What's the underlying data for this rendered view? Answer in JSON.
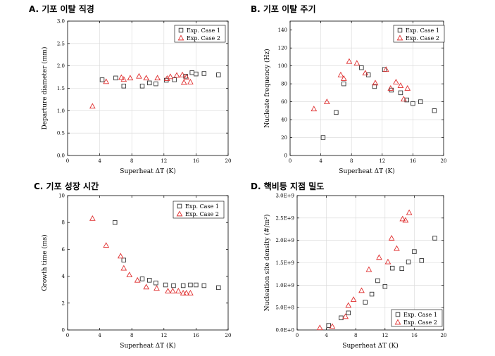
{
  "chart_data": [
    {
      "id": "A",
      "type": "scatter",
      "title": "A. 기포 이탈 직경",
      "xlabel": "Superheat ΔT (K)",
      "ylabel": "Departure diameter (mm)",
      "xlim": [
        0,
        20
      ],
      "ylim": [
        0,
        3.0
      ],
      "xticks": [
        "0",
        "4",
        "8",
        "12",
        "16",
        "20"
      ],
      "xtick_values": [
        0,
        4,
        8,
        12,
        16,
        20
      ],
      "yticks": [
        "0.0",
        "0.5",
        "1.0",
        "1.5",
        "2.0",
        "2.5",
        "3.0"
      ],
      "ytick_values": [
        0,
        0.5,
        1.0,
        1.5,
        2.0,
        2.5,
        3.0
      ],
      "grid": true,
      "legend": "top-right",
      "series": [
        {
          "name": "Exp. Case 1",
          "marker": "square",
          "color": "#333333",
          "x": [
            4.3,
            6.0,
            7.0,
            9.3,
            10.2,
            11.0,
            12.3,
            13.3,
            14.7,
            15.5,
            16.0,
            17.0,
            18.8
          ],
          "y": [
            1.69,
            1.73,
            1.55,
            1.55,
            1.62,
            1.6,
            1.68,
            1.69,
            1.77,
            1.85,
            1.82,
            1.83,
            1.8
          ]
        },
        {
          "name": "Exp. Case 2",
          "marker": "triangle",
          "color": "#e03030",
          "x": [
            3.1,
            4.8,
            6.7,
            7.0,
            7.8,
            8.9,
            9.8,
            11.2,
            12.4,
            12.8,
            13.6,
            14.3,
            14.5,
            14.8,
            15.3
          ],
          "y": [
            1.1,
            1.65,
            1.74,
            1.7,
            1.73,
            1.77,
            1.73,
            1.73,
            1.72,
            1.76,
            1.79,
            1.8,
            1.63,
            1.75,
            1.64
          ]
        }
      ]
    },
    {
      "id": "B",
      "type": "scatter",
      "title": "B. 기포 이탈 주기",
      "xlabel": "Superheat ΔT (K)",
      "ylabel": "Nucleate frequency (Hz)",
      "xlim": [
        0,
        20
      ],
      "ylim": [
        0,
        150
      ],
      "xticks": [
        "0",
        "4",
        "8",
        "12",
        "16",
        "20"
      ],
      "xtick_values": [
        0,
        4,
        8,
        12,
        16,
        20
      ],
      "yticks": [
        "0",
        "20",
        "40",
        "60",
        "80",
        "100",
        "120",
        "140"
      ],
      "ytick_values": [
        0,
        20,
        40,
        60,
        80,
        100,
        120,
        140
      ],
      "grid": true,
      "legend": "top-right",
      "series": [
        {
          "name": "Exp. Case 1",
          "marker": "square",
          "color": "#333333",
          "x": [
            4.3,
            6.0,
            7.0,
            9.3,
            10.2,
            11.0,
            12.3,
            13.2,
            14.4,
            15.2,
            16.0,
            17.0,
            18.8
          ],
          "y": [
            20,
            48,
            80,
            98,
            90,
            77,
            96,
            73,
            70,
            62,
            58,
            60,
            50
          ]
        },
        {
          "name": "Exp. Case 2",
          "marker": "triangle",
          "color": "#e03030",
          "x": [
            3.1,
            4.8,
            6.6,
            7.0,
            7.7,
            8.7,
            9.8,
            11.1,
            12.5,
            13.1,
            13.8,
            14.4,
            14.8,
            15.3
          ],
          "y": [
            52,
            60,
            90,
            86,
            105,
            103,
            92,
            81,
            96,
            75,
            82,
            78,
            63,
            75
          ]
        }
      ]
    },
    {
      "id": "C",
      "type": "scatter",
      "title": "C. 기포 성장 시간",
      "xlabel": "Superheat ΔT (K)",
      "ylabel": "Growth time (ms)",
      "xlim": [
        0,
        20
      ],
      "ylim": [
        0,
        10
      ],
      "xticks": [
        "0",
        "4",
        "8",
        "12",
        "16",
        "20"
      ],
      "xtick_values": [
        0,
        4,
        8,
        12,
        16,
        20
      ],
      "yticks": [
        "0",
        "2",
        "4",
        "6",
        "8",
        "10"
      ],
      "ytick_values": [
        0,
        2,
        4,
        6,
        8,
        10
      ],
      "grid": false,
      "legend": "top-right",
      "series": [
        {
          "name": "Exp. Case 1",
          "marker": "square",
          "color": "#333333",
          "x": [
            5.9,
            7.0,
            9.3,
            10.2,
            11.0,
            12.2,
            13.2,
            14.4,
            15.3,
            16.0,
            17.0,
            18.8
          ],
          "y": [
            8.0,
            5.2,
            3.8,
            3.7,
            3.5,
            3.35,
            3.3,
            3.3,
            3.35,
            3.35,
            3.3,
            3.15
          ]
        },
        {
          "name": "Exp. Case 2",
          "marker": "triangle",
          "color": "#e03030",
          "x": [
            3.1,
            4.8,
            6.6,
            7.0,
            7.7,
            8.7,
            9.8,
            11.1,
            12.5,
            13.1,
            13.8,
            14.4,
            14.8,
            15.3
          ],
          "y": [
            8.3,
            6.3,
            5.5,
            4.6,
            4.1,
            3.7,
            3.2,
            3.1,
            2.9,
            2.9,
            2.9,
            2.75,
            2.75,
            2.75
          ]
        }
      ]
    },
    {
      "id": "D",
      "type": "scatter",
      "title": "D. 핵비등 지점 밀도",
      "xlabel": "Superheat ΔT (K)",
      "ylabel": "Nucleation site density (#/m²)",
      "xlim": [
        0,
        20
      ],
      "ylim": [
        0,
        3000000000.0
      ],
      "xticks": [
        "0",
        "4",
        "8",
        "12",
        "16",
        "20"
      ],
      "xtick_values": [
        0,
        4,
        8,
        12,
        16,
        20
      ],
      "yticks": [
        "0.0E+0",
        "5.0E+8",
        "1.0E+9",
        "1.5E+9",
        "2.0E+9",
        "2.5E+9",
        "3.0E+9"
      ],
      "ytick_values": [
        0,
        500000000.0,
        1000000000.0,
        1500000000.0,
        2000000000.0,
        2500000000.0,
        3000000000.0
      ],
      "grid": true,
      "legend": "bottom-right",
      "series": [
        {
          "name": "Exp. Case 1",
          "marker": "square",
          "color": "#333333",
          "x": [
            4.3,
            6.0,
            7.0,
            9.3,
            10.2,
            11.0,
            12.0,
            13.0,
            14.3,
            15.2,
            16.0,
            17.0,
            18.8
          ],
          "y": [
            100000000.0,
            270000000.0,
            380000000.0,
            620000000.0,
            800000000.0,
            1100000000.0,
            970000000.0,
            1380000000.0,
            1370000000.0,
            1520000000.0,
            1750000000.0,
            1550000000.0,
            2050000000.0
          ]
        },
        {
          "name": "Exp. Case 2",
          "marker": "triangle",
          "color": "#e03030",
          "x": [
            3.1,
            4.8,
            6.6,
            7.0,
            7.7,
            8.8,
            9.8,
            11.2,
            12.4,
            12.9,
            13.6,
            14.4,
            14.8,
            15.3
          ],
          "y": [
            50000000.0,
            80000000.0,
            300000000.0,
            550000000.0,
            680000000.0,
            880000000.0,
            1350000000.0,
            1620000000.0,
            1520000000.0,
            2050000000.0,
            1820000000.0,
            2480000000.0,
            2450000000.0,
            2620000000.0
          ]
        }
      ]
    }
  ]
}
